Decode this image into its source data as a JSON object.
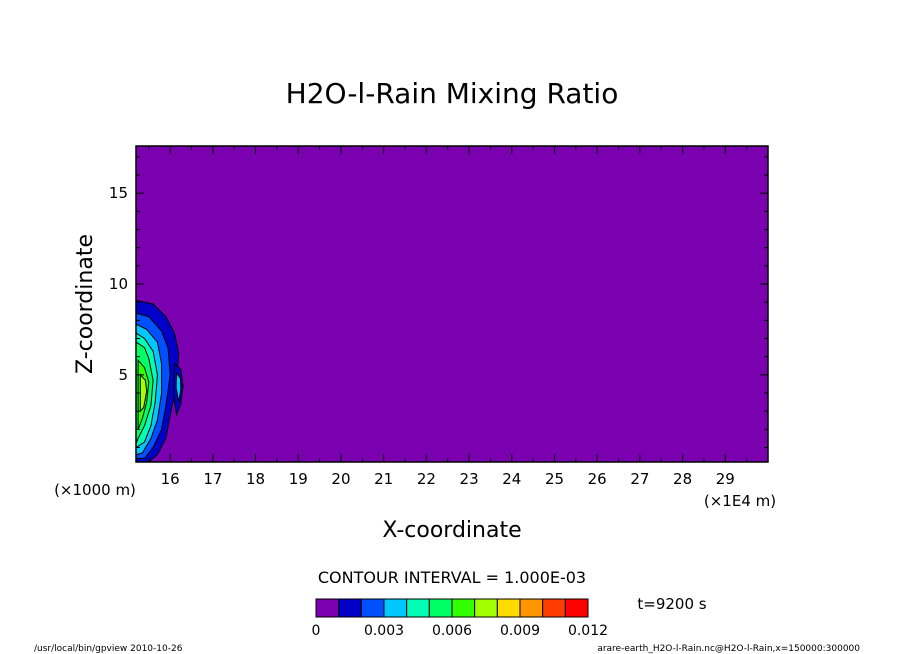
{
  "chart_data": {
    "type": "heatmap",
    "title": "H2O-l-Rain Mixing Ratio",
    "xlabel": "X-coordinate",
    "ylabel": "Z-coordinate",
    "x_unit_left": "(×1000 m)",
    "x_unit_right": "(×1E4 m)",
    "xlim": [
      15.2,
      30.0
    ],
    "ylim": [
      0.2,
      17.6
    ],
    "x_ticks": [
      16,
      17,
      18,
      19,
      20,
      21,
      22,
      23,
      24,
      25,
      26,
      27,
      28,
      29
    ],
    "y_ticks": [
      5,
      10,
      15
    ],
    "contour_interval_text": "CONTOUR INTERVAL = 1.000E-03",
    "time_text": "t=9200 s",
    "levels": [
      0,
      0.001,
      0.002,
      0.003,
      0.004,
      0.005,
      0.006,
      0.007,
      0.008,
      0.009,
      0.01,
      0.011,
      0.012
    ],
    "colorbar_labels": [
      "0",
      "0.003",
      "0.006",
      "0.009",
      "0.012"
    ],
    "colors": [
      "#7b00b0",
      "#0000c8",
      "#0050ff",
      "#00c8ff",
      "#00ffb4",
      "#00ff64",
      "#32ff00",
      "#a0ff00",
      "#ffdc00",
      "#ff9600",
      "#ff3c00",
      "#ff0000",
      "#ffa0a0"
    ],
    "background_color": "#7b00b0",
    "regions": [
      {
        "level": 1,
        "x": [
          15.2,
          15.6,
          15.9,
          16.1,
          16.2,
          16.15,
          16.0,
          15.9,
          15.7,
          15.5,
          15.2
        ],
        "z": [
          9.1,
          8.9,
          8.2,
          7.3,
          6.2,
          4.5,
          2.8,
          1.5,
          0.6,
          0.2,
          0.2
        ]
      },
      {
        "level": 2,
        "x": [
          15.2,
          15.5,
          15.8,
          15.95,
          16.0,
          15.9,
          15.8,
          15.6,
          15.4,
          15.2
        ],
        "z": [
          8.4,
          8.2,
          7.4,
          6.5,
          5.0,
          3.3,
          2.0,
          1.0,
          0.4,
          0.4
        ]
      },
      {
        "level": 3,
        "x": [
          15.2,
          15.45,
          15.7,
          15.8,
          15.8,
          15.7,
          15.55,
          15.35,
          15.2
        ],
        "z": [
          7.8,
          7.5,
          6.8,
          5.6,
          4.0,
          2.5,
          1.5,
          0.7,
          0.6
        ]
      },
      {
        "level": 4,
        "x": [
          15.2,
          15.4,
          15.6,
          15.7,
          15.65,
          15.55,
          15.4,
          15.2
        ],
        "z": [
          7.3,
          7.0,
          6.3,
          5.0,
          3.5,
          2.2,
          1.3,
          1.0
        ]
      },
      {
        "level": 5,
        "x": [
          15.2,
          15.4,
          15.5,
          15.6,
          15.55,
          15.4,
          15.25,
          15.2
        ],
        "z": [
          6.8,
          6.5,
          5.9,
          4.7,
          3.3,
          2.2,
          1.5,
          1.2
        ]
      },
      {
        "level": 6,
        "x": [
          15.25,
          15.4,
          15.5,
          15.45,
          15.35,
          15.25
        ],
        "z": [
          5.8,
          5.4,
          4.6,
          3.5,
          2.6,
          2.0
        ]
      },
      {
        "level": 7,
        "x": [
          15.3,
          15.42,
          15.45,
          15.38,
          15.3
        ],
        "z": [
          5.0,
          4.7,
          4.1,
          3.2,
          3.0
        ]
      },
      {
        "level": 1,
        "x": [
          16.1,
          16.25,
          16.3,
          16.25,
          16.15,
          16.08
        ],
        "z": [
          5.6,
          5.3,
          4.4,
          3.4,
          2.8,
          3.8
        ]
      },
      {
        "level": 3,
        "x": [
          16.15,
          16.24,
          16.25,
          16.2,
          16.14
        ],
        "z": [
          5.1,
          4.8,
          4.2,
          3.5,
          4.3
        ]
      }
    ]
  },
  "footer": {
    "left": "/usr/local/bin/gpview  2010-10-26",
    "right": "arare-earth_H2O-l-Rain.nc@H2O-l-Rain,x=150000:300000"
  }
}
